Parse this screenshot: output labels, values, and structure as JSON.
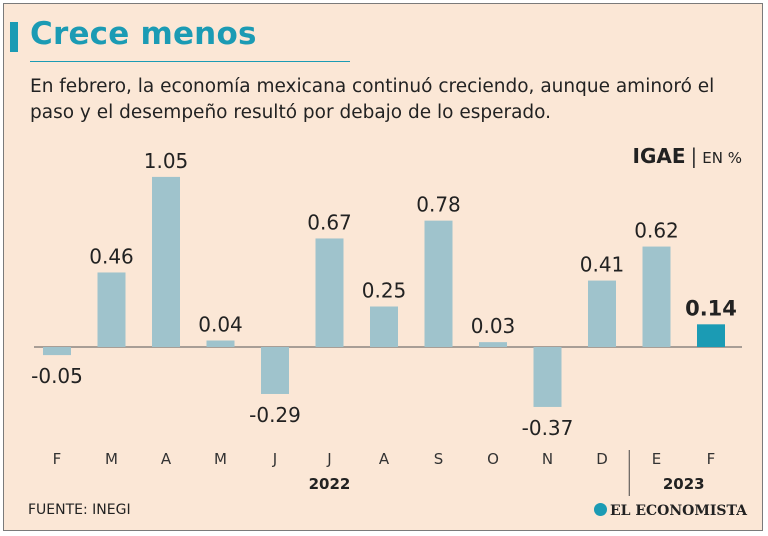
{
  "header": {
    "title": "Crece menos",
    "subtitle": "En febrero, la economía mexicana continuó creciendo, aunque aminoró el paso y el desempeño resultó por debajo de lo esperado."
  },
  "legend": {
    "indicator": "IGAE",
    "separator": "|",
    "unit": "EN %"
  },
  "footer": {
    "source": "FUENTE: INEGI",
    "brand": "EL ECONOMISTA"
  },
  "colors": {
    "bar": "#9fc3cc",
    "highlight": "#1b9bb4",
    "background": "#fbe7d6",
    "title": "#1b9bb4"
  },
  "chart_data": {
    "type": "bar",
    "title": "Crece menos",
    "ylabel": "EN %",
    "categories": [
      "F",
      "M",
      "A",
      "M",
      "J",
      "J",
      "A",
      "S",
      "O",
      "N",
      "D",
      "E",
      "F"
    ],
    "values": [
      -0.05,
      0.46,
      1.05,
      0.04,
      -0.29,
      0.67,
      0.25,
      0.78,
      0.03,
      -0.37,
      0.41,
      0.62,
      0.14
    ],
    "labels": [
      "-0.05",
      "0.46",
      "1.05",
      "0.04",
      "-0.29",
      "0.67",
      "0.25",
      "0.78",
      "0.03",
      "-0.37",
      "0.41",
      "0.62",
      "0.14"
    ],
    "highlight_index": 12,
    "year_groups": [
      {
        "label": "2022",
        "start": 0,
        "end": 10
      },
      {
        "label": "2023",
        "start": 11,
        "end": 12
      }
    ],
    "ylim": [
      -0.4,
      1.1
    ]
  }
}
